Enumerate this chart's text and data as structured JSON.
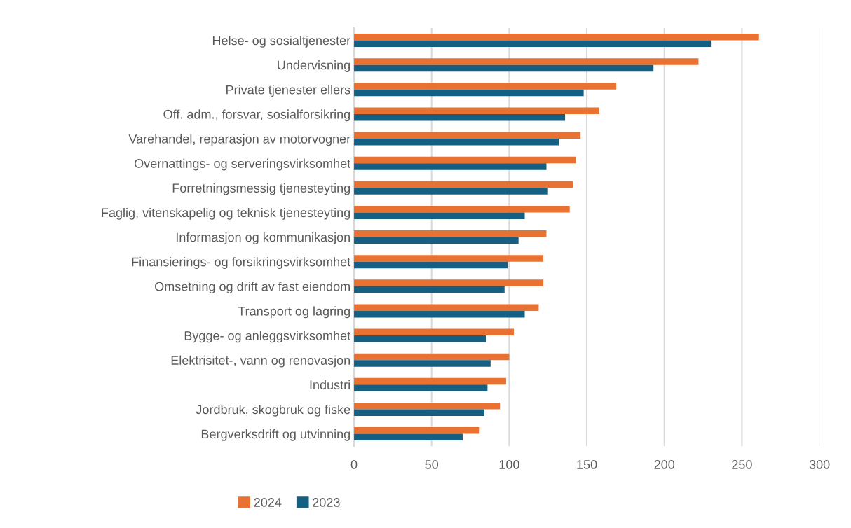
{
  "chart_data": {
    "type": "bar",
    "orientation": "horizontal",
    "categories": [
      "Helse- og sosialtjenester",
      "Undervisning",
      "Private tjenester ellers",
      "Off. adm., forsvar, sosialforsikring",
      "Varehandel, reparasjon av motorvogner",
      "Overnattings- og serveringsvirksomhet",
      "Forretningsmessig tjenesteyting",
      "Faglig, vitenskapelig og teknisk tjenesteyting",
      "Informasjon og kommunikasjon",
      "Finansierings- og forsikringsvirksomhet",
      "Omsetning og drift av fast eiendom",
      "Transport og lagring",
      "Bygge- og anleggsvirksomhet",
      "Elektrisitet-, vann og renovasjon",
      "Industri",
      "Jordbruk, skogbruk og fiske",
      "Bergverksdrift og utvinning"
    ],
    "series": [
      {
        "name": "2024",
        "color": "#e97132",
        "values": [
          261,
          222,
          169,
          158,
          146,
          143,
          141,
          139,
          124,
          122,
          122,
          119,
          103,
          100,
          98,
          94,
          81
        ]
      },
      {
        "name": "2023",
        "color": "#156082",
        "values": [
          230,
          193,
          148,
          136,
          132,
          124,
          125,
          110,
          106,
          99,
          97,
          110,
          85,
          88,
          86,
          84,
          70
        ]
      }
    ],
    "xlim": [
      0,
      300
    ],
    "xticks": [
      0,
      50,
      100,
      150,
      200,
      250,
      300
    ],
    "grid": "x",
    "legend": "bottom"
  }
}
